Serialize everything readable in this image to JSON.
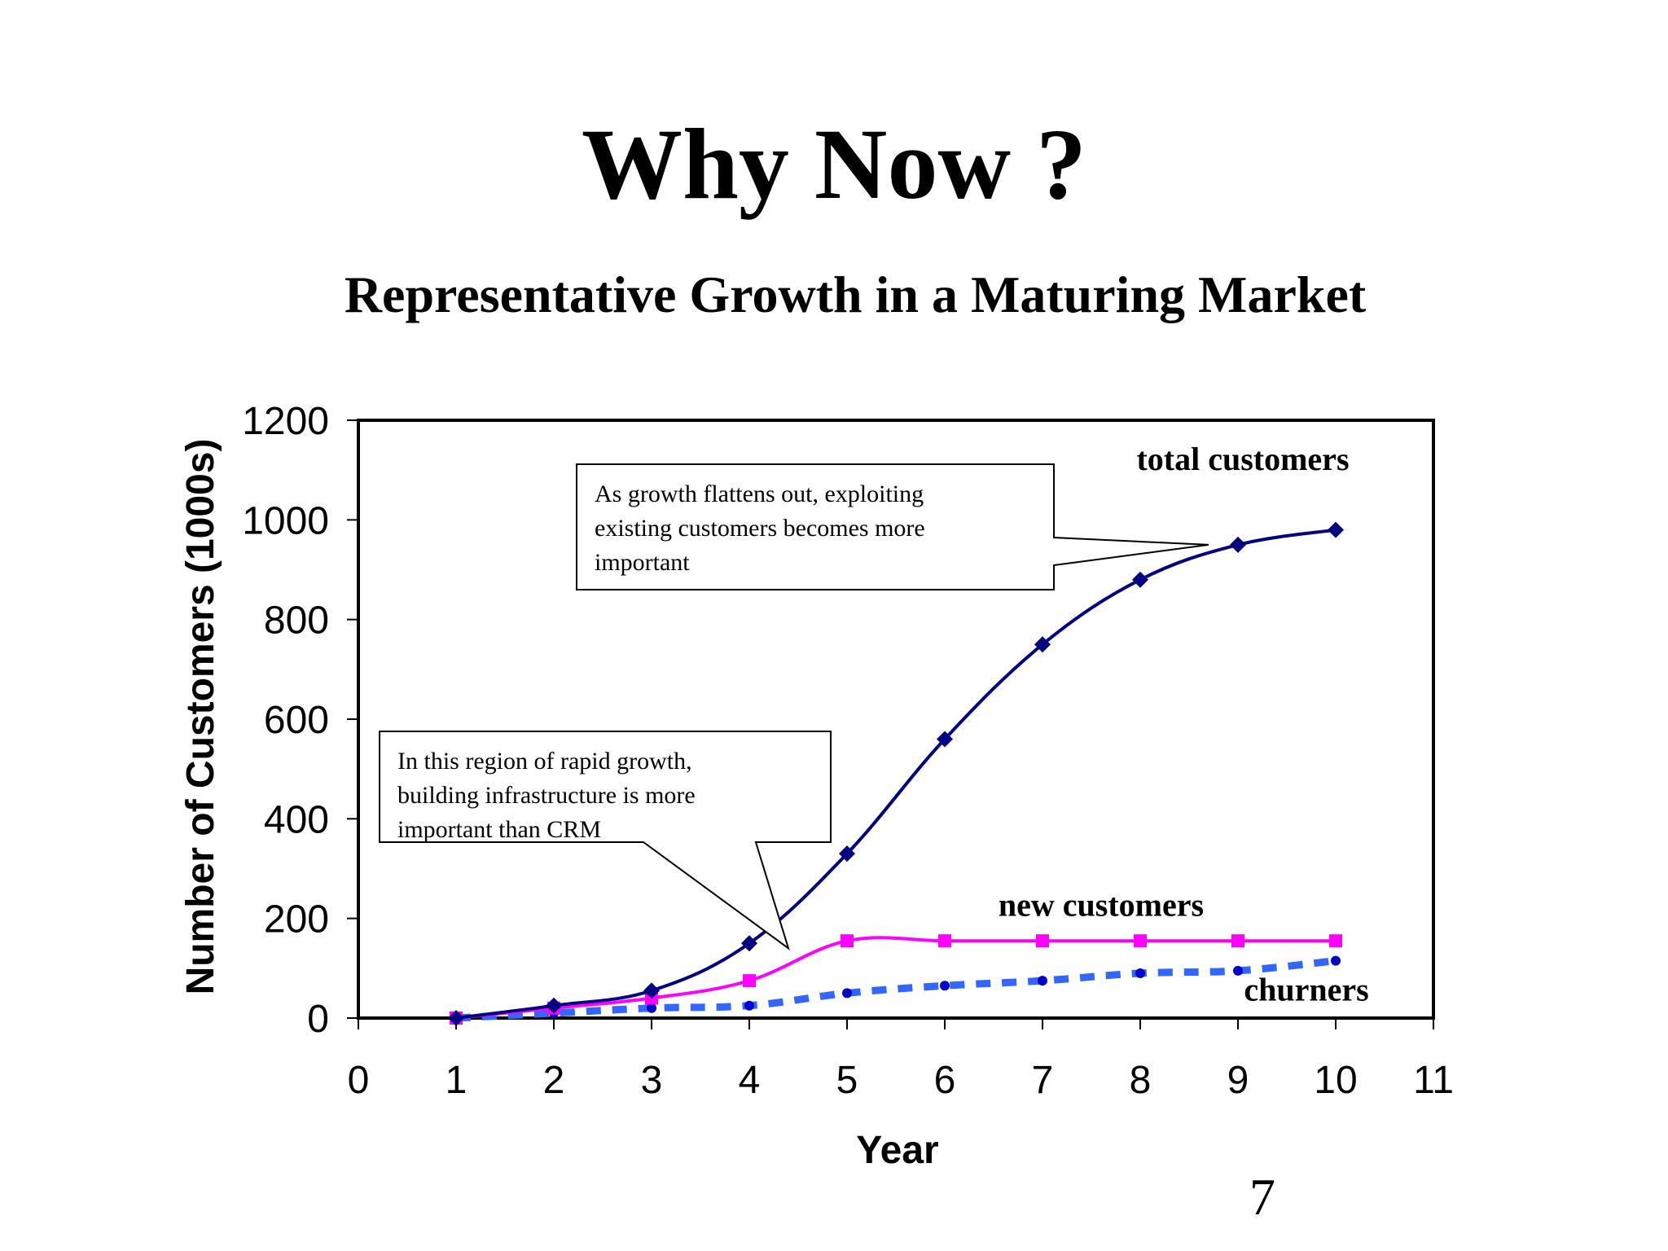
{
  "slide": {
    "title": "Why Now ?",
    "subtitle": "Representative Growth in a Maturing Market",
    "page_number": "7"
  },
  "chart_data": {
    "type": "line",
    "xlabel": "Year",
    "ylabel": "Number of Customers (1000s)",
    "xlim": [
      0,
      11
    ],
    "ylim": [
      0,
      1200
    ],
    "x_ticks": [
      0,
      1,
      2,
      3,
      4,
      5,
      6,
      7,
      8,
      9,
      10,
      11
    ],
    "y_ticks": [
      0,
      200,
      400,
      600,
      800,
      1000,
      1200
    ],
    "grid": false,
    "legend": "none",
    "series": [
      {
        "name": "total customers",
        "color": "#000080",
        "marker": "diamond",
        "style": "solid",
        "x": [
          1,
          2,
          3,
          4,
          5,
          6,
          7,
          8,
          9,
          10
        ],
        "y": [
          0,
          25,
          55,
          150,
          330,
          560,
          750,
          880,
          950,
          980
        ]
      },
      {
        "name": "new customers",
        "color": "#ff00ff",
        "marker": "square",
        "style": "solid",
        "x": [
          1,
          2,
          3,
          4,
          5,
          6,
          7,
          8,
          9,
          10
        ],
        "y": [
          0,
          20,
          40,
          75,
          155,
          155,
          155,
          155,
          155,
          155
        ]
      },
      {
        "name": "churners",
        "color": "#3366ff",
        "marker": "circle",
        "style": "dashed",
        "x": [
          1,
          2,
          3,
          4,
          5,
          6,
          7,
          8,
          9,
          10
        ],
        "y": [
          0,
          10,
          20,
          25,
          50,
          65,
          75,
          90,
          95,
          115
        ]
      }
    ],
    "annotations": [
      {
        "lines": [
          "As growth flattens out, exploiting",
          "existing customers becomes more",
          "important"
        ],
        "points_to": {
          "x": 8.7,
          "y": 950
        }
      },
      {
        "lines": [
          "In this region of rapid growth,",
          "building infrastructure is more",
          "important than CRM"
        ],
        "points_to": {
          "x": 4.4,
          "y": 140
        }
      }
    ]
  }
}
